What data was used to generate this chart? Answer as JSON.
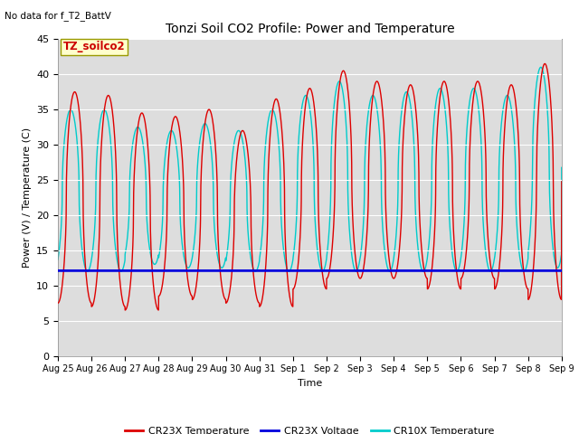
{
  "title": "Tonzi Soil CO2 Profile: Power and Temperature",
  "subtitle": "No data for f_T2_BattV",
  "ylabel": "Power (V) / Temperature (C)",
  "xlabel": "Time",
  "ylim": [
    0,
    45
  ],
  "yticks": [
    0,
    5,
    10,
    15,
    20,
    25,
    30,
    35,
    40,
    45
  ],
  "x_tick_labels": [
    "Aug 25",
    "Aug 26",
    "Aug 27",
    "Aug 28",
    "Aug 29",
    "Aug 30",
    "Aug 31",
    "Sep 1",
    "Sep 2",
    "Sep 3",
    "Sep 4",
    "Sep 5",
    "Sep 6",
    "Sep 7",
    "Sep 8",
    "Sep 9"
  ],
  "annotation_label": "TZ_soilco2",
  "annotation_color": "#cc0000",
  "annotation_bg": "#ffffcc",
  "bg_color": "#dddddd",
  "cr23x_temp_color": "#dd0000",
  "cr23x_volt_color": "#0000dd",
  "cr10x_temp_color": "#00cccc",
  "voltage_value": 12.1,
  "figwidth": 6.4,
  "figheight": 4.8,
  "dpi": 100
}
